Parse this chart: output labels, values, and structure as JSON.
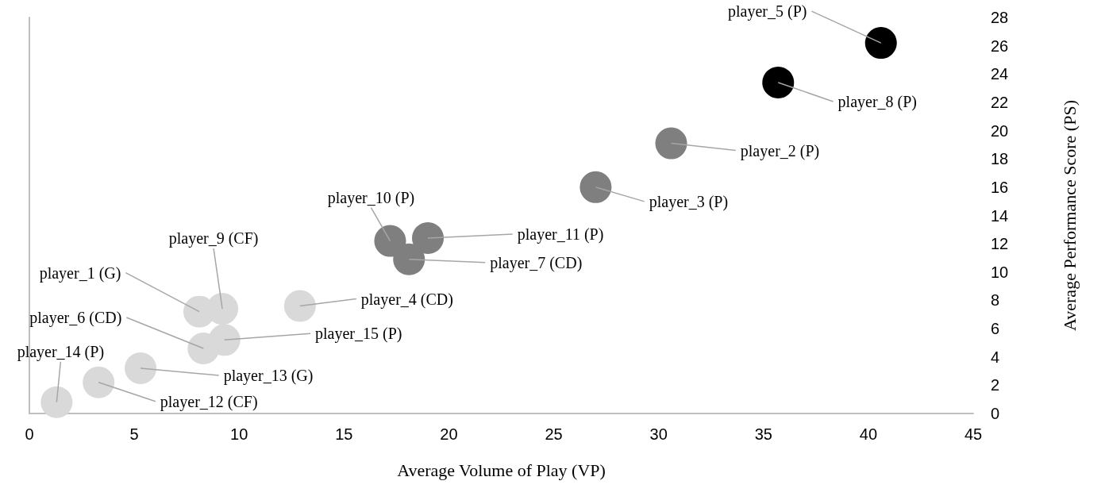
{
  "chart_data": {
    "type": "scatter",
    "xlabel": "Average Volume of Play (VP)",
    "ylabel": "Average Performance Score (PS)",
    "marker": "circle",
    "grid": false,
    "xlim": [
      0,
      45
    ],
    "xticks": [
      0,
      5,
      10,
      15,
      20,
      25,
      30,
      35,
      40,
      45
    ],
    "ylim": [
      0,
      28
    ],
    "yticks": [
      0,
      2,
      4,
      6,
      8,
      10,
      12,
      14,
      16,
      18,
      20,
      22,
      24,
      26,
      28
    ],
    "series": [
      {
        "color": "#000000",
        "x": [
          40.6,
          35.7
        ],
        "values": [
          26.2,
          23.4
        ]
      },
      {
        "color": "#7f7f7f",
        "x": [
          30.6,
          27.0,
          17.2,
          19.0,
          18.1
        ],
        "values": [
          19.1,
          16.0,
          12.2,
          12.4,
          10.9
        ]
      },
      {
        "color": "#d9d9d9",
        "x": [
          8.1,
          9.2,
          12.9,
          8.3,
          9.3,
          5.3,
          3.3,
          1.3
        ],
        "values": [
          7.2,
          7.4,
          7.6,
          4.6,
          5.2,
          3.2,
          2.2,
          0.8
        ]
      }
    ],
    "annotations": [
      {
        "text": "player_1 (G)",
        "x": 8.1,
        "y": 7.2
      },
      {
        "text": "player_2 (P)",
        "x": 30.6,
        "y": 19.1
      },
      {
        "text": "player_3 (P)",
        "x": 27.0,
        "y": 16.0
      },
      {
        "text": "player_4 (CD)",
        "x": 12.9,
        "y": 7.6
      },
      {
        "text": "player_5 (P)",
        "x": 40.6,
        "y": 26.2
      },
      {
        "text": "player_6 (CD)",
        "x": 8.3,
        "y": 4.6
      },
      {
        "text": "player_7 (CD)",
        "x": 18.1,
        "y": 10.9
      },
      {
        "text": "player_8 (P)",
        "x": 35.7,
        "y": 23.4
      },
      {
        "text": "player_9 (CF)",
        "x": 9.2,
        "y": 7.4
      },
      {
        "text": "player_10 (P)",
        "x": 17.2,
        "y": 12.2
      },
      {
        "text": "player_11 (P)",
        "x": 19.0,
        "y": 12.4
      },
      {
        "text": "player_12 (CF)",
        "x": 3.3,
        "y": 2.2
      },
      {
        "text": "player_13 (G)",
        "x": 5.3,
        "y": 3.2
      },
      {
        "text": "player_14 (P)",
        "x": 1.3,
        "y": 0.8
      },
      {
        "text": "player_15 (P)",
        "x": 9.3,
        "y": 5.2
      }
    ]
  }
}
